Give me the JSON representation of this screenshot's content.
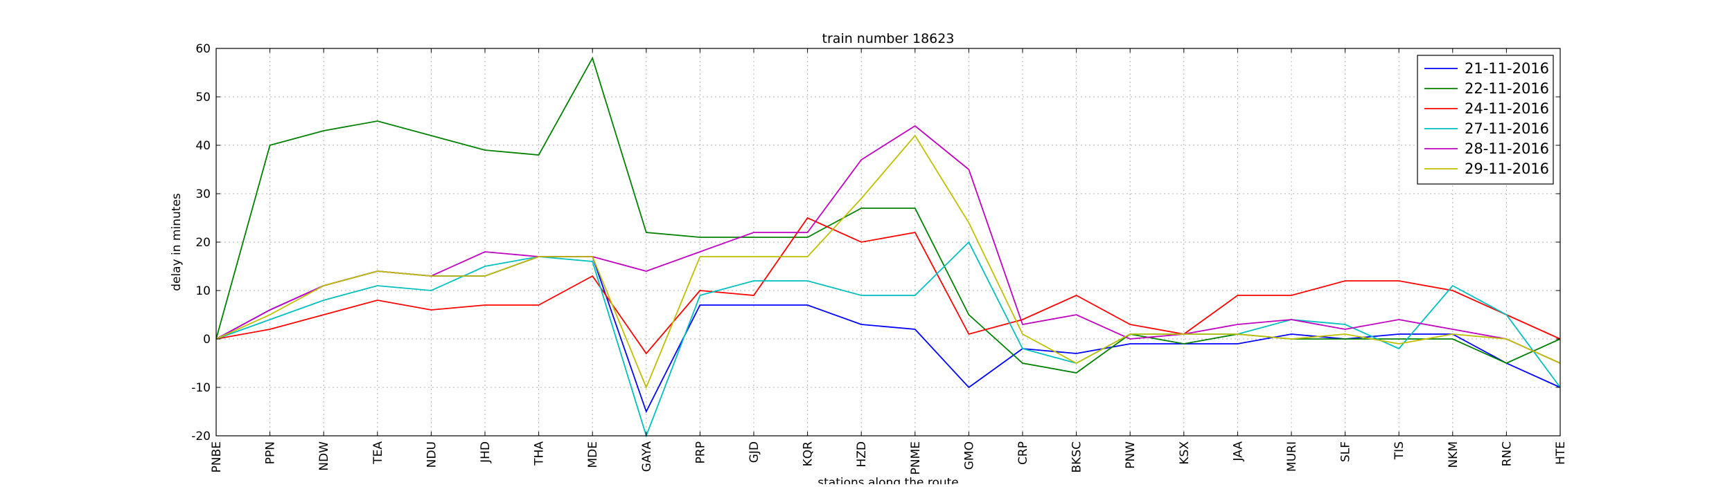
{
  "chart_data": {
    "type": "line",
    "title": "train number 18623",
    "xlabel": "stations along the route",
    "ylabel": "delay in minutes",
    "ylim": [
      -20,
      60
    ],
    "yticks": [
      -20,
      -10,
      0,
      10,
      20,
      30,
      40,
      50,
      60
    ],
    "grid": true,
    "legend_position": "top-right",
    "categories": [
      "PNBE",
      "PPN",
      "NDW",
      "TEA",
      "NDU",
      "JHD",
      "THA",
      "MDE",
      "GAYA",
      "PRP",
      "GJD",
      "KQR",
      "HZD",
      "PNME",
      "GMO",
      "CRP",
      "BKSC",
      "PNW",
      "KSX",
      "JAA",
      "MURI",
      "SLF",
      "TIS",
      "NKM",
      "RNC",
      "HTE"
    ],
    "series": [
      {
        "name": "21-11-2016",
        "color": "#0000ff",
        "values": [
          0,
          6,
          11,
          14,
          13,
          13,
          17,
          17,
          -15,
          7,
          7,
          7,
          3,
          2,
          -10,
          -2,
          -3,
          -1,
          -1,
          -1,
          1,
          0,
          1,
          1,
          -5,
          -10
        ]
      },
      {
        "name": "22-11-2016",
        "color": "#008000",
        "values": [
          0,
          40,
          43,
          45,
          42,
          39,
          38,
          58,
          22,
          21,
          21,
          21,
          27,
          27,
          5,
          -5,
          -7,
          1,
          -1,
          1,
          0,
          0,
          0,
          0,
          -5,
          0
        ]
      },
      {
        "name": "24-11-2016",
        "color": "#ff0000",
        "values": [
          0,
          2,
          5,
          8,
          6,
          7,
          7,
          13,
          -3,
          10,
          9,
          25,
          20,
          22,
          1,
          4,
          9,
          3,
          1,
          9,
          9,
          12,
          12,
          10,
          5,
          0
        ]
      },
      {
        "name": "27-11-2016",
        "color": "#00bfbf",
        "values": [
          0,
          4,
          8,
          11,
          10,
          15,
          17,
          16,
          -20,
          9,
          12,
          12,
          9,
          9,
          20,
          -2,
          -5,
          1,
          1,
          1,
          4,
          3,
          -2,
          11,
          5,
          -10
        ]
      },
      {
        "name": "28-11-2016",
        "color": "#bf00bf",
        "values": [
          0,
          6,
          11,
          14,
          13,
          18,
          17,
          17,
          14,
          18,
          22,
          22,
          37,
          44,
          35,
          3,
          5,
          0,
          1,
          3,
          4,
          2,
          4,
          2,
          0,
          -5
        ]
      },
      {
        "name": "29-11-2016",
        "color": "#bfbf00",
        "values": [
          0,
          5,
          11,
          14,
          13,
          13,
          17,
          17,
          -10,
          17,
          17,
          17,
          29,
          42,
          24,
          1,
          -5,
          1,
          1,
          1,
          0,
          1,
          -1,
          1,
          0,
          -5
        ]
      }
    ]
  }
}
